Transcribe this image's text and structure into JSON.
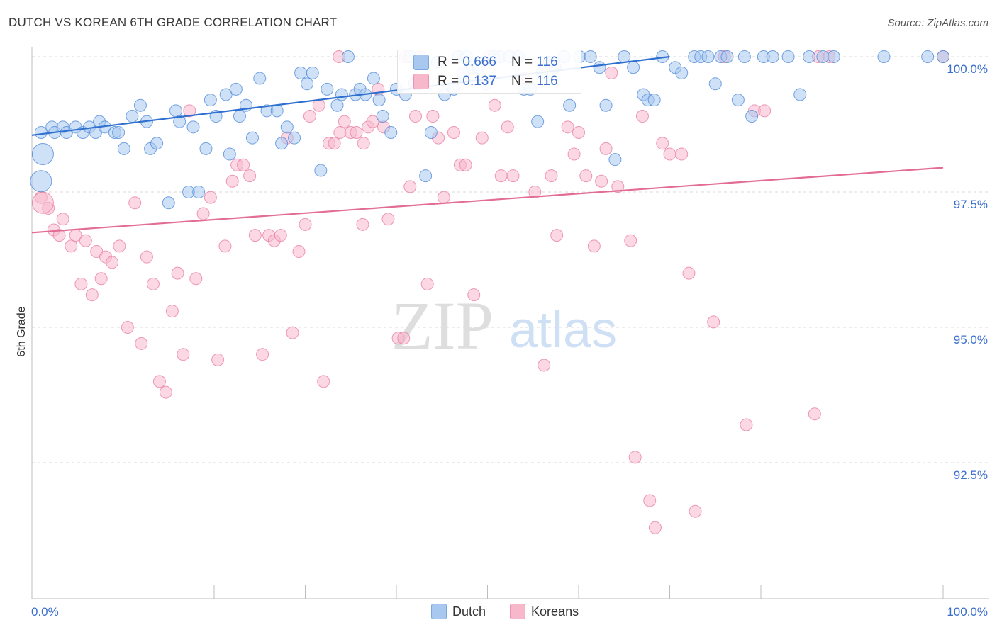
{
  "header": {
    "title": "DUTCH VS KOREAN 6TH GRADE CORRELATION CHART",
    "source": "Source: ZipAtlas.com"
  },
  "watermark": {
    "zip": "ZIP",
    "atlas": "atlas"
  },
  "stats": [
    {
      "r_label": "R = ",
      "r_value": "0.666",
      "n_label": "N = ",
      "n_value": "116"
    },
    {
      "r_label": "R = ",
      "r_value": "0.137",
      "n_label": "N = ",
      "n_value": "116"
    }
  ],
  "legend": [
    {
      "label": "Dutch",
      "color": "#a8c8f0"
    },
    {
      "label": "Koreans",
      "color": "#f7b8cc"
    }
  ],
  "chart_data": {
    "type": "scatter",
    "title": "DUTCH VS KOREAN 6TH GRADE CORRELATION CHART",
    "xlabel": "",
    "ylabel": "6th Grade",
    "xlim": [
      0,
      100
    ],
    "ylim": [
      90.2,
      100.2
    ],
    "x_tick_labels": [
      "0.0%",
      "100.0%"
    ],
    "y_ticks": [
      {
        "value": 100.0,
        "label": "100.0%"
      },
      {
        "value": 97.5,
        "label": "97.5%"
      },
      {
        "value": 95.0,
        "label": "95.0%"
      },
      {
        "value": 92.5,
        "label": "92.5%"
      }
    ],
    "grid": true,
    "legend_position": "bottom-center",
    "series": [
      {
        "name": "Dutch",
        "color": "#4a86d8",
        "fill": "#a8c8f0",
        "trend": {
          "x": [
            0,
            70
          ],
          "y": [
            98.55,
            100.0
          ],
          "color": "#2f6fcf"
        },
        "points": [
          [
            1.0,
            98.6
          ],
          [
            2.2,
            98.7
          ],
          [
            2.5,
            98.6
          ],
          [
            3.4,
            98.7
          ],
          [
            3.8,
            98.6
          ],
          [
            4.8,
            98.7
          ],
          [
            5.6,
            98.6
          ],
          [
            6.3,
            98.7
          ],
          [
            7.0,
            98.6
          ],
          [
            7.4,
            98.8
          ],
          [
            8.0,
            98.7
          ],
          [
            9.1,
            98.6
          ],
          [
            9.5,
            98.6
          ],
          [
            10.1,
            98.3
          ],
          [
            11.0,
            98.9
          ],
          [
            11.9,
            99.1
          ],
          [
            12.6,
            98.8
          ],
          [
            13.0,
            98.3
          ],
          [
            13.7,
            98.4
          ],
          [
            15.0,
            97.3
          ],
          [
            15.8,
            99.0
          ],
          [
            16.2,
            98.8
          ],
          [
            17.2,
            97.5
          ],
          [
            17.7,
            98.7
          ],
          [
            18.3,
            97.5
          ],
          [
            19.1,
            98.3
          ],
          [
            19.6,
            99.2
          ],
          [
            20.2,
            98.9
          ],
          [
            21.3,
            99.3
          ],
          [
            21.7,
            98.2
          ],
          [
            22.4,
            99.4
          ],
          [
            22.8,
            98.9
          ],
          [
            23.5,
            99.1
          ],
          [
            24.2,
            98.5
          ],
          [
            25.0,
            99.6
          ],
          [
            25.8,
            99.0
          ],
          [
            26.9,
            99.0
          ],
          [
            27.4,
            98.4
          ],
          [
            28.0,
            98.7
          ],
          [
            28.8,
            98.5
          ],
          [
            29.5,
            99.7
          ],
          [
            30.2,
            99.5
          ],
          [
            30.8,
            99.7
          ],
          [
            31.7,
            97.9
          ],
          [
            32.4,
            99.4
          ],
          [
            33.5,
            99.1
          ],
          [
            34.0,
            99.3
          ],
          [
            34.7,
            100.0
          ],
          [
            35.5,
            99.3
          ],
          [
            36.0,
            99.4
          ],
          [
            36.6,
            99.3
          ],
          [
            37.5,
            99.6
          ],
          [
            38.1,
            99.2
          ],
          [
            38.5,
            98.9
          ],
          [
            39.4,
            98.6
          ],
          [
            40.0,
            99.4
          ],
          [
            41.0,
            99.3
          ],
          [
            41.5,
            100.0
          ],
          [
            42.0,
            99.5
          ],
          [
            42.6,
            99.5
          ],
          [
            43.2,
            97.8
          ],
          [
            43.8,
            98.6
          ],
          [
            44.5,
            99.9
          ],
          [
            45.3,
            99.3
          ],
          [
            46.3,
            99.4
          ],
          [
            46.8,
            100.0
          ],
          [
            47.3,
            99.7
          ],
          [
            47.7,
            100.0
          ],
          [
            48.3,
            99.8
          ],
          [
            49.0,
            99.8
          ],
          [
            49.8,
            99.5
          ],
          [
            50.7,
            100.0
          ],
          [
            51.4,
            100.0
          ],
          [
            52.4,
            100.0
          ],
          [
            53.4,
            100.0
          ],
          [
            54.0,
            99.4
          ],
          [
            54.7,
            99.4
          ],
          [
            55.5,
            98.8
          ],
          [
            56.0,
            99.7
          ],
          [
            56.8,
            99.9
          ],
          [
            57.4,
            99.8
          ],
          [
            58.4,
            100.0
          ],
          [
            59.0,
            99.1
          ],
          [
            60.1,
            100.0
          ],
          [
            61.3,
            100.0
          ],
          [
            62.3,
            99.8
          ],
          [
            63.0,
            99.1
          ],
          [
            64.0,
            98.1
          ],
          [
            65.0,
            100.0
          ],
          [
            66.0,
            99.8
          ],
          [
            67.1,
            99.3
          ],
          [
            67.6,
            99.2
          ],
          [
            68.3,
            99.2
          ],
          [
            69.2,
            100.0
          ],
          [
            70.6,
            99.8
          ],
          [
            71.3,
            99.7
          ],
          [
            72.7,
            100.0
          ],
          [
            73.4,
            100.0
          ],
          [
            74.2,
            100.0
          ],
          [
            75.0,
            99.5
          ],
          [
            75.6,
            100.0
          ],
          [
            76.3,
            100.0
          ],
          [
            77.5,
            99.2
          ],
          [
            78.2,
            100.0
          ],
          [
            79.0,
            98.9
          ],
          [
            80.3,
            100.0
          ],
          [
            81.3,
            100.0
          ],
          [
            83.0,
            100.0
          ],
          [
            84.3,
            99.3
          ],
          [
            85.3,
            100.0
          ],
          [
            86.8,
            100.0
          ],
          [
            88.0,
            100.0
          ],
          [
            93.5,
            100.0
          ],
          [
            98.3,
            100.0
          ],
          [
            1.2,
            98.2,
            "large"
          ],
          [
            1.0,
            97.7,
            "large"
          ],
          [
            100,
            100.0
          ]
        ]
      },
      {
        "name": "Koreans",
        "color": "#e87aa0",
        "fill": "#f7b8cc",
        "trend": {
          "x": [
            0,
            100
          ],
          "y": [
            96.75,
            97.95
          ],
          "color": "#e36c97"
        },
        "points": [
          [
            1.0,
            97.4
          ],
          [
            1.8,
            97.2
          ],
          [
            2.4,
            96.8
          ],
          [
            3.0,
            96.7
          ],
          [
            3.4,
            97.0
          ],
          [
            4.3,
            96.5
          ],
          [
            4.8,
            96.7
          ],
          [
            5.4,
            95.8
          ],
          [
            5.9,
            96.6
          ],
          [
            6.6,
            95.6
          ],
          [
            7.1,
            96.4
          ],
          [
            7.6,
            95.9
          ],
          [
            8.1,
            96.3
          ],
          [
            8.8,
            96.2
          ],
          [
            9.6,
            96.5
          ],
          [
            10.5,
            95.0
          ],
          [
            11.3,
            97.3
          ],
          [
            12.0,
            94.7
          ],
          [
            12.6,
            96.3
          ],
          [
            13.3,
            95.8
          ],
          [
            14.0,
            94.0
          ],
          [
            14.7,
            93.8
          ],
          [
            15.4,
            95.3
          ],
          [
            16.0,
            96.0
          ],
          [
            16.6,
            94.5
          ],
          [
            17.3,
            99.0
          ],
          [
            18.0,
            95.9
          ],
          [
            18.8,
            97.1
          ],
          [
            19.6,
            97.4
          ],
          [
            20.4,
            94.4
          ],
          [
            21.2,
            96.5
          ],
          [
            22.0,
            97.7
          ],
          [
            22.5,
            98.0
          ],
          [
            23.2,
            98.0
          ],
          [
            23.9,
            97.8
          ],
          [
            24.5,
            96.7
          ],
          [
            25.3,
            94.5
          ],
          [
            26.0,
            96.7
          ],
          [
            26.6,
            96.6
          ],
          [
            27.3,
            96.7
          ],
          [
            28.0,
            98.5
          ],
          [
            28.6,
            94.9
          ],
          [
            29.3,
            96.4
          ],
          [
            30.0,
            96.9
          ],
          [
            30.5,
            98.9
          ],
          [
            31.5,
            99.1
          ],
          [
            32.0,
            94.0
          ],
          [
            32.6,
            98.4
          ],
          [
            33.2,
            98.4
          ],
          [
            33.8,
            98.6
          ],
          [
            34.3,
            98.8
          ],
          [
            35.0,
            98.6
          ],
          [
            35.6,
            98.6
          ],
          [
            36.3,
            96.9
          ],
          [
            36.9,
            98.7
          ],
          [
            37.4,
            98.8
          ],
          [
            38.0,
            99.4
          ],
          [
            38.6,
            98.7
          ],
          [
            39.1,
            97.0
          ],
          [
            40.2,
            94.8
          ],
          [
            40.8,
            94.8
          ],
          [
            41.5,
            97.6
          ],
          [
            42.1,
            98.9
          ],
          [
            42.6,
            100.0
          ],
          [
            43.4,
            95.8
          ],
          [
            44.0,
            98.9
          ],
          [
            44.6,
            98.5
          ],
          [
            45.2,
            97.4
          ],
          [
            46.3,
            98.6
          ],
          [
            47.0,
            98.0
          ],
          [
            47.6,
            98.0
          ],
          [
            48.5,
            95.6
          ],
          [
            49.4,
            98.5
          ],
          [
            50.1,
            100.0
          ],
          [
            50.8,
            99.1
          ],
          [
            51.5,
            97.8
          ],
          [
            52.2,
            98.7
          ],
          [
            52.8,
            97.8
          ],
          [
            54.0,
            99.6
          ],
          [
            55.2,
            97.5
          ],
          [
            56.2,
            94.3
          ],
          [
            57.0,
            97.8
          ],
          [
            57.6,
            96.7
          ],
          [
            58.8,
            98.7
          ],
          [
            59.5,
            98.2
          ],
          [
            60.0,
            98.6
          ],
          [
            60.8,
            97.8
          ],
          [
            61.7,
            96.5
          ],
          [
            62.5,
            97.7
          ],
          [
            63.0,
            98.3
          ],
          [
            63.6,
            99.7
          ],
          [
            64.3,
            97.6
          ],
          [
            65.7,
            96.6
          ],
          [
            66.2,
            92.6
          ],
          [
            67.0,
            98.9
          ],
          [
            67.8,
            91.8
          ],
          [
            68.4,
            91.3
          ],
          [
            69.2,
            98.4
          ],
          [
            70.0,
            98.2
          ],
          [
            71.3,
            98.2
          ],
          [
            72.1,
            96.0
          ],
          [
            72.8,
            91.6
          ],
          [
            74.8,
            95.1
          ],
          [
            76.0,
            100.0
          ],
          [
            78.4,
            93.2
          ],
          [
            79.3,
            99.0
          ],
          [
            80.4,
            99.0
          ],
          [
            85.9,
            93.4
          ],
          [
            86.3,
            100.0
          ],
          [
            87.5,
            100.0
          ],
          [
            1.2,
            97.3,
            "large"
          ],
          [
            100,
            100.0
          ],
          [
            42.2,
            99.5
          ],
          [
            36.4,
            98.4
          ],
          [
            33.7,
            100.0
          ],
          [
            41.0,
            100.0
          ]
        ]
      }
    ]
  }
}
